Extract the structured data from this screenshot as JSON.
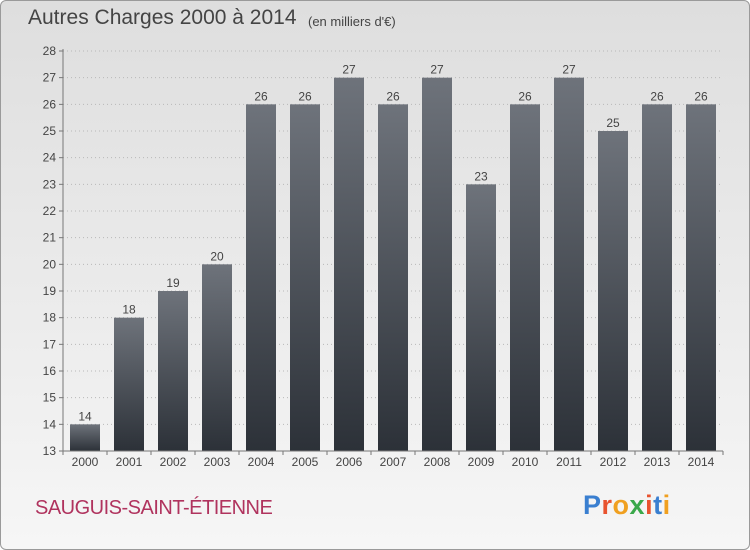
{
  "title": "Autres Charges 2000 à 2014",
  "unit_note": "(en milliers d'€)",
  "commune": "SAUGUIS-SAINT-ÉTIENNE",
  "logo": {
    "letters": [
      "P",
      "r",
      "o",
      "x",
      "i",
      "t",
      "i"
    ],
    "colors": [
      "#3a7fd0",
      "#e8532f",
      "#f0a020",
      "#3aa84a",
      "#e8532f",
      "#3a7fd0",
      "#f0a020"
    ]
  },
  "colors": {
    "bar_top": "#6e737b",
    "bar_bottom": "#2c3138",
    "text": "#444444",
    "commune": "#b0335e"
  },
  "chart_data": {
    "type": "bar",
    "categories": [
      "2000",
      "2001",
      "2002",
      "2003",
      "2004",
      "2005",
      "2006",
      "2007",
      "2008",
      "2009",
      "2010",
      "2011",
      "2012",
      "2013",
      "2014"
    ],
    "values": [
      14,
      18,
      19,
      20,
      26,
      26,
      27,
      26,
      27,
      23,
      26,
      27,
      25,
      26,
      26
    ],
    "ylim": [
      13,
      28
    ],
    "yticks": [
      13,
      14,
      15,
      16,
      17,
      18,
      19,
      20,
      21,
      22,
      23,
      24,
      25,
      26,
      27,
      28
    ],
    "grid": true,
    "title": "Autres Charges 2000 à 2014",
    "xlabel": "",
    "ylabel": ""
  }
}
